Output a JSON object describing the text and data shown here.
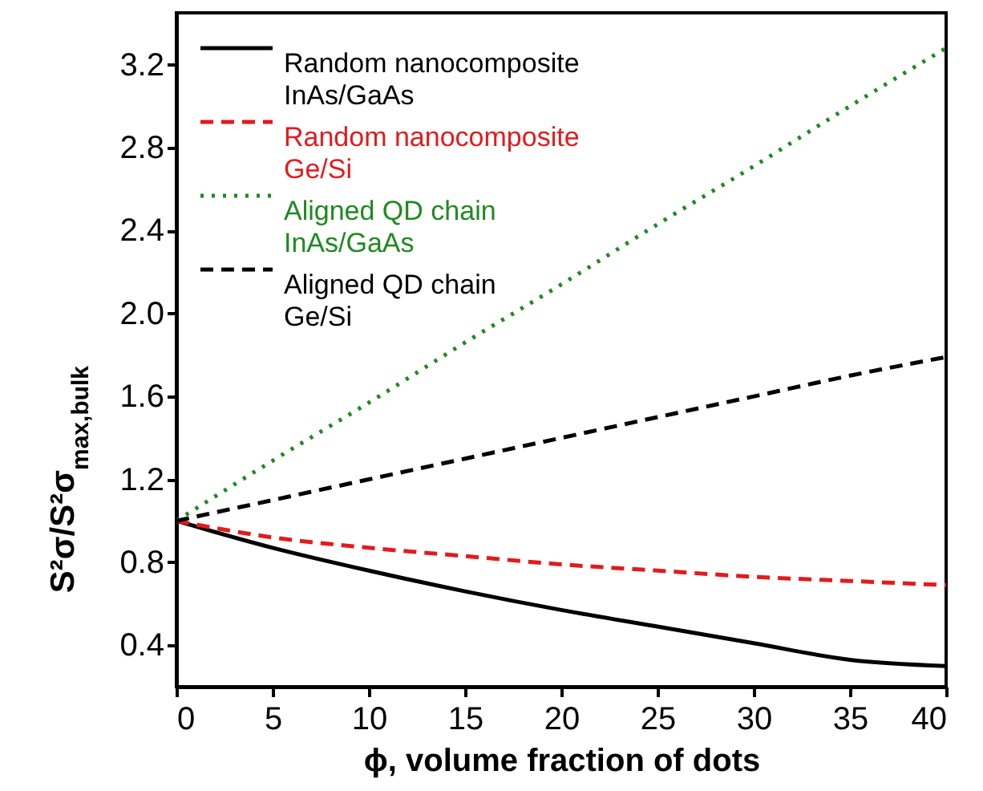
{
  "chart_data": {
    "type": "line",
    "xlabel": "ϕ, volume fraction of dots",
    "ylabel": "S²σ/S²σ$_{max,bulk}$",
    "x": [
      0,
      5,
      10,
      15,
      20,
      25,
      30,
      35,
      40
    ],
    "series": [
      {
        "name": "Random nanocomposite InAs/GaAs",
        "color": "#000000",
        "line_style": "solid",
        "values": [
          1.0,
          0.87,
          0.76,
          0.66,
          0.57,
          0.49,
          0.41,
          0.33,
          0.3
        ]
      },
      {
        "name": "Random nanocomposite Ge/Si",
        "color": "#e41a1c",
        "line_style": "dashed",
        "values": [
          1.0,
          0.92,
          0.87,
          0.83,
          0.79,
          0.76,
          0.73,
          0.71,
          0.69
        ]
      },
      {
        "name": "Aligned QD chain InAs/GaAs",
        "color": "#1f8a1f",
        "line_style": "dotted",
        "values": [
          1.0,
          1.29,
          1.57,
          1.86,
          2.14,
          2.43,
          2.71,
          3.0,
          3.28
        ]
      },
      {
        "name": "Aligned QD chain Ge/Si",
        "color": "#000000",
        "line_style": "dashed",
        "values": [
          1.0,
          1.1,
          1.2,
          1.3,
          1.4,
          1.5,
          1.6,
          1.7,
          1.79
        ]
      }
    ],
    "xlim": [
      0,
      40
    ],
    "xticks": [
      0,
      5,
      10,
      15,
      20,
      25,
      30,
      35,
      40
    ],
    "ylim": [
      0.2,
      3.45
    ],
    "yticks": [
      0.4,
      0.8,
      1.2,
      1.6,
      {
        "value": 2,
        "label": "2.0"
      },
      2.4,
      2.8,
      3.2
    ],
    "grid": false,
    "legend": "top left"
  }
}
